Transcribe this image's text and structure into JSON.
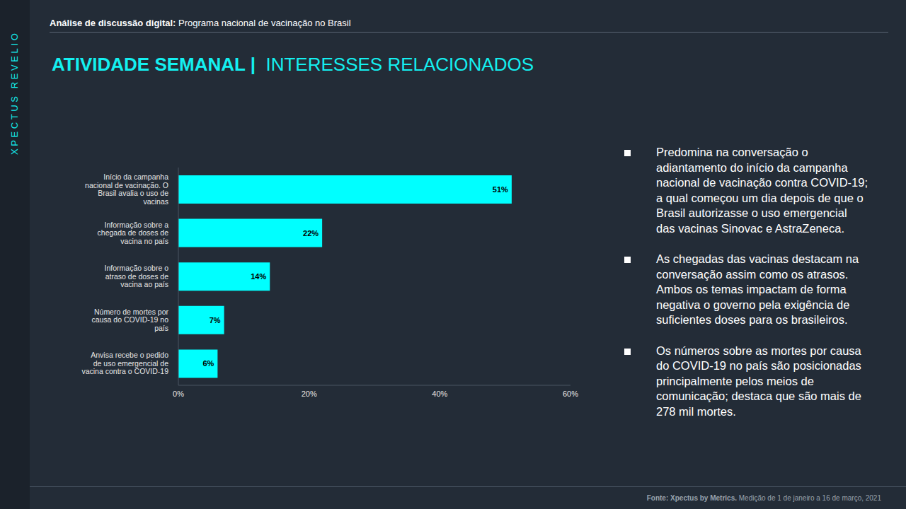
{
  "chart_data": {
    "type": "bar",
    "orientation": "horizontal",
    "title": "ATIVIDADE SEMANAL |",
    "subtitle": "INTERESSES RELACIONADOS",
    "categories": [
      "Início da campanha nacional de vacinação. O Brasil avalia o uso de vacinas",
      "Informação sobre a chegada de doses de vacina no país",
      "Informação sobre o atraso de doses de vacina ao país",
      "Número de mortes por causa do COVID-19 no país",
      "Anvisa recebe o pedido de uso emergencial de vacina contra o COVID-19"
    ],
    "values": [
      51,
      22,
      14,
      7,
      6
    ],
    "value_labels": [
      "51%",
      "22%",
      "14%",
      "7%",
      "6%"
    ],
    "data_labels": true,
    "color": "#00ffff",
    "xlim": [
      0,
      60
    ],
    "xticks": [
      {
        "value": 0,
        "label": "0%"
      },
      {
        "value": 20,
        "label": "20%"
      },
      {
        "value": 40,
        "label": "40%"
      },
      {
        "value": 60,
        "label": "60%"
      }
    ],
    "grid": false
  },
  "slide": {
    "brand": "XPECTUS REVELIO",
    "header_bold": "Análise de discussão digital:",
    "header_text": "Programa nacional de vacinação no Brasil",
    "bullets": [
      "Predomina na conversação o adiantamento do início da campanha nacional de vacinação contra COVID-19; a qual começou um dia depois de que o Brasil autorizasse o uso emergencial das vacinas Sinovac e AstraZeneca.",
      "As chegadas das vacinas destacam na conversação assim como os atrasos. Ambos os temas impactam de forma negativa o governo pela exigência de suficientes doses para os brasileiros.",
      "Os números sobre as mortes por causa do COVID-19 no país são posicionadas principalmente pelos meios de comunicação; destaca que são mais de 278 mil mortes."
    ],
    "footer_bold": "Fonte: Xpectus by Metrics.",
    "footer_text": "Medição de 1 de janeiro a 16 de março, 2021"
  }
}
